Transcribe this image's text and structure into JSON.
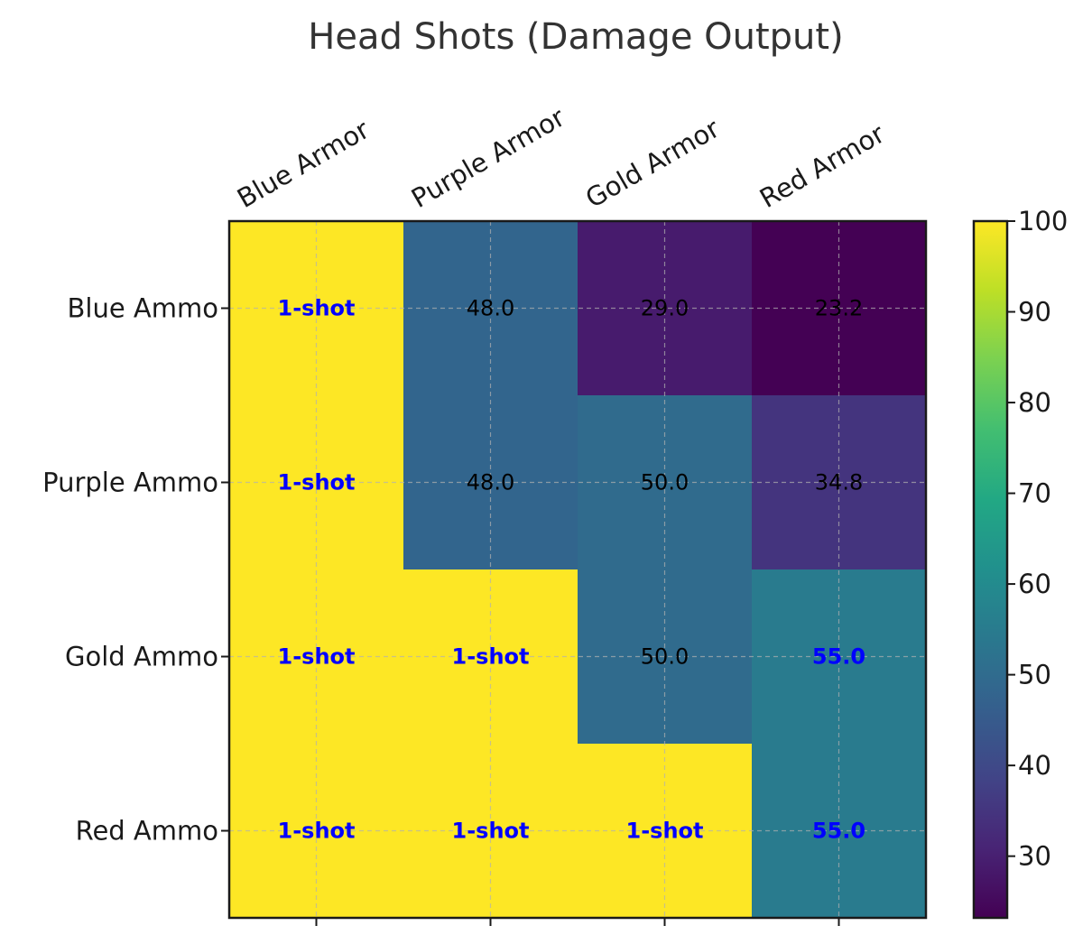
{
  "chart_data": {
    "type": "heatmap",
    "title": "Head Shots (Damage Output)",
    "columns": [
      "Blue Armor",
      "Purple Armor",
      "Gold Armor",
      "Red Armor"
    ],
    "rows": [
      "Blue Ammo",
      "Purple Ammo",
      "Gold Ammo",
      "Red Ammo"
    ],
    "values": [
      [
        100,
        48.0,
        29.0,
        23.2
      ],
      [
        100,
        48.0,
        50.0,
        34.8
      ],
      [
        100,
        100,
        50.0,
        55.0
      ],
      [
        100,
        100,
        100,
        55.0
      ]
    ],
    "cell_labels": [
      [
        "1-shot",
        "48.0",
        "29.0",
        "23.2"
      ],
      [
        "1-shot",
        "48.0",
        "50.0",
        "34.8"
      ],
      [
        "1-shot",
        "1-shot",
        "50.0",
        "55.0"
      ],
      [
        "1-shot",
        "1-shot",
        "1-shot",
        "55.0"
      ]
    ],
    "highlighted": [
      [
        true,
        false,
        false,
        false
      ],
      [
        true,
        false,
        false,
        false
      ],
      [
        true,
        true,
        false,
        true
      ],
      [
        true,
        true,
        true,
        true
      ]
    ],
    "colormap": "viridis",
    "color_range": [
      23.2,
      100
    ],
    "colorbar_ticks": [
      30,
      40,
      50,
      60,
      70,
      80,
      90,
      100
    ],
    "grid": true,
    "colors": {
      "highlight_text": "#0000ff",
      "normal_text": "#000000",
      "title_text": "#333333"
    }
  }
}
